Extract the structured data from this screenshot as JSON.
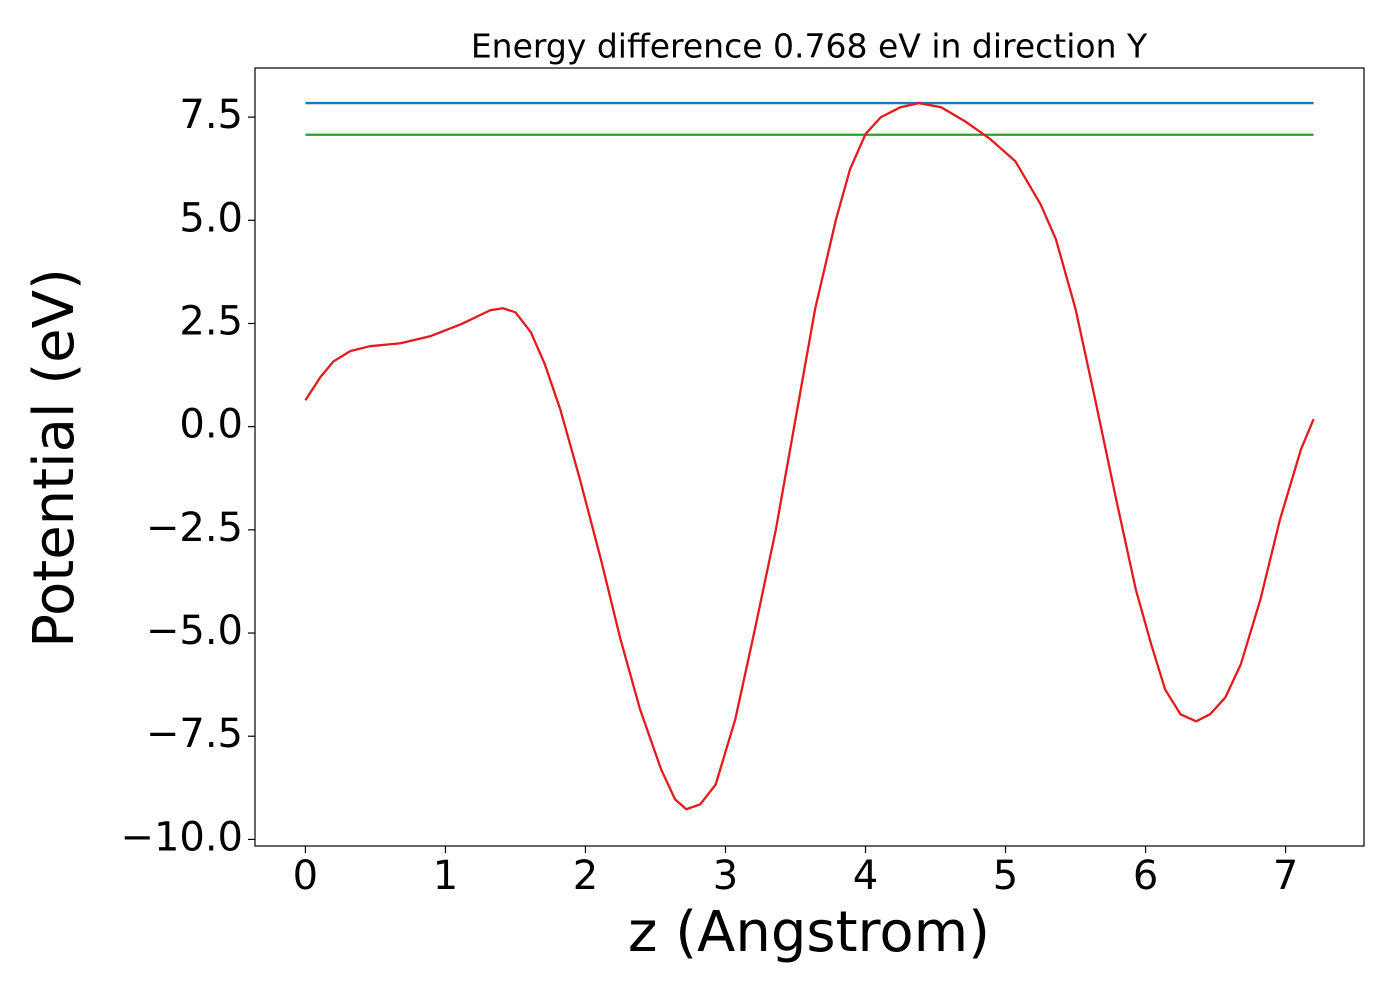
{
  "chart_data": {
    "type": "line",
    "title": "Energy difference 0.768 eV in direction Y",
    "xlabel": "z (Angstrom)",
    "ylabel": "Potential (eV)",
    "xlim": [
      -0.36,
      7.56
    ],
    "ylim": [
      -10.16,
      8.69
    ],
    "xticks": [
      0,
      1,
      2,
      3,
      4,
      5,
      6,
      7
    ],
    "yticks": [
      {
        "value": -10,
        "label": "−10.0"
      },
      {
        "value": -7.5,
        "label": "−7.5"
      },
      {
        "value": -5,
        "label": "−5.0"
      },
      {
        "value": -2.5,
        "label": "−2.5"
      },
      {
        "value": 0,
        "label": "0.0"
      },
      2.5,
      {
        "value": 5,
        "label": "5.0"
      },
      7.5
    ],
    "grid": false,
    "series": [
      {
        "color": "#1f77b4",
        "x": [
          0,
          7.2
        ],
        "values": [
          7.84,
          7.84
        ]
      },
      {
        "color": "#2ca02c",
        "x": [
          0,
          7.2
        ],
        "values": [
          7.072,
          7.072
        ]
      },
      {
        "color": "#e41a1c",
        "x": [
          0,
          0.107,
          0.2,
          0.32,
          0.46,
          0.68,
          0.89,
          1.11,
          1.32,
          1.41,
          1.5,
          1.61,
          1.71,
          1.82,
          1.96,
          2.11,
          2.25,
          2.39,
          2.54,
          2.64,
          2.72,
          2.82,
          2.93,
          3.07,
          3.21,
          3.36,
          3.5,
          3.64,
          3.79,
          3.89,
          4.0,
          4.11,
          4.25,
          4.38,
          4.54,
          4.71,
          4.89,
          5.07,
          5.25,
          5.36,
          5.5,
          5.64,
          5.79,
          5.93,
          6.04,
          6.14,
          6.25,
          6.36,
          6.46,
          6.57,
          6.68,
          6.82,
          6.96,
          7.11,
          7.2
        ],
        "values": [
          0.64,
          1.2,
          1.58,
          1.83,
          1.95,
          2.02,
          2.19,
          2.48,
          2.82,
          2.87,
          2.77,
          2.29,
          1.51,
          0.42,
          -1.27,
          -3.21,
          -5.15,
          -6.85,
          -8.3,
          -9.03,
          -9.27,
          -9.15,
          -8.67,
          -7.09,
          -4.91,
          -2.49,
          0.18,
          2.85,
          5.03,
          6.24,
          7.09,
          7.5,
          7.74,
          7.84,
          7.74,
          7.4,
          6.97,
          6.43,
          5.39,
          4.54,
          2.85,
          0.66,
          -1.76,
          -3.94,
          -5.27,
          -6.37,
          -6.97,
          -7.14,
          -6.97,
          -6.56,
          -5.76,
          -4.19,
          -2.25,
          -0.55,
          0.18
        ]
      }
    ]
  }
}
